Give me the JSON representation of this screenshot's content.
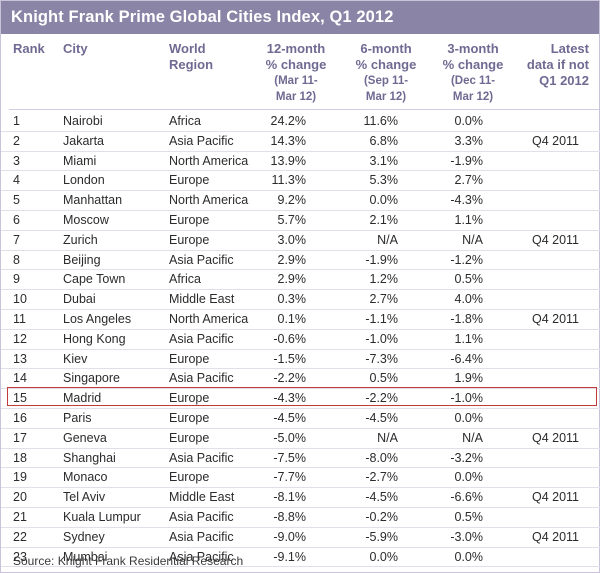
{
  "chart_data": {
    "type": "table",
    "title": "Knight Frank Prime Global Cities Index, Q1 2012",
    "columns": {
      "rank": "Rank",
      "city": "City",
      "region_l1": "World",
      "region_l2": "Region",
      "y12_l1": "12-month",
      "y12_l2": "% change",
      "y12_l3": "(Mar 11-",
      "y12_l4": "Mar 12)",
      "m6_l1": "6-month",
      "m6_l2": "% change",
      "m6_l3": "(Sep 11-",
      "m6_l4": "Mar 12)",
      "m3_l1": "3-month",
      "m3_l2": "% change",
      "m3_l3": "(Dec 11-",
      "m3_l4": "Mar 12)",
      "latest_l1": "Latest",
      "latest_l2": "data if not",
      "latest_l3": "Q1 2012"
    },
    "rows": [
      {
        "rank": "1",
        "city": "Nairobi",
        "region": "Africa",
        "y12": "24.2%",
        "m6": "11.6%",
        "m3": "0.0%",
        "latest": ""
      },
      {
        "rank": "2",
        "city": "Jakarta",
        "region": "Asia Pacific",
        "y12": "14.3%",
        "m6": "6.8%",
        "m3": "3.3%",
        "latest": "Q4 2011"
      },
      {
        "rank": "3",
        "city": "Miami",
        "region": "North America",
        "y12": "13.9%",
        "m6": "3.1%",
        "m3": "-1.9%",
        "latest": ""
      },
      {
        "rank": "4",
        "city": "London",
        "region": "Europe",
        "y12": "11.3%",
        "m6": "5.3%",
        "m3": "2.7%",
        "latest": ""
      },
      {
        "rank": "5",
        "city": "Manhattan",
        "region": "North America",
        "y12": "9.2%",
        "m6": "0.0%",
        "m3": "-4.3%",
        "latest": ""
      },
      {
        "rank": "6",
        "city": "Moscow",
        "region": "Europe",
        "y12": "5.7%",
        "m6": "2.1%",
        "m3": "1.1%",
        "latest": ""
      },
      {
        "rank": "7",
        "city": "Zurich",
        "region": "Europe",
        "y12": "3.0%",
        "m6": "N/A",
        "m3": "N/A",
        "latest": "Q4 2011"
      },
      {
        "rank": "8",
        "city": "Beijing",
        "region": "Asia Pacific",
        "y12": "2.9%",
        "m6": "-1.9%",
        "m3": "-1.2%",
        "latest": ""
      },
      {
        "rank": "9",
        "city": "Cape Town",
        "region": "Africa",
        "y12": "2.9%",
        "m6": "1.2%",
        "m3": "0.5%",
        "latest": ""
      },
      {
        "rank": "10",
        "city": "Dubai",
        "region": "Middle East",
        "y12": "0.3%",
        "m6": "2.7%",
        "m3": "4.0%",
        "latest": ""
      },
      {
        "rank": "11",
        "city": "Los Angeles",
        "region": "North America",
        "y12": "0.1%",
        "m6": "-1.1%",
        "m3": "-1.8%",
        "latest": "Q4 2011"
      },
      {
        "rank": "12",
        "city": "Hong Kong",
        "region": "Asia Pacific",
        "y12": "-0.6%",
        "m6": "-1.0%",
        "m3": "1.1%",
        "latest": ""
      },
      {
        "rank": "13",
        "city": "Kiev",
        "region": "Europe",
        "y12": "-1.5%",
        "m6": "-7.3%",
        "m3": "-6.4%",
        "latest": ""
      },
      {
        "rank": "14",
        "city": "Singapore",
        "region": "Asia Pacific",
        "y12": "-2.2%",
        "m6": "0.5%",
        "m3": "1.9%",
        "latest": ""
      },
      {
        "rank": "15",
        "city": "Madrid",
        "region": "Europe",
        "y12": "-4.3%",
        "m6": "-2.2%",
        "m3": "-1.0%",
        "latest": "",
        "highlight": true
      },
      {
        "rank": "16",
        "city": "Paris",
        "region": "Europe",
        "y12": "-4.5%",
        "m6": "-4.5%",
        "m3": "0.0%",
        "latest": ""
      },
      {
        "rank": "17",
        "city": "Geneva",
        "region": "Europe",
        "y12": "-5.0%",
        "m6": "N/A",
        "m3": "N/A",
        "latest": "Q4 2011"
      },
      {
        "rank": "18",
        "city": "Shanghai",
        "region": "Asia Pacific",
        "y12": "-7.5%",
        "m6": "-8.0%",
        "m3": "-3.2%",
        "latest": ""
      },
      {
        "rank": "19",
        "city": "Monaco",
        "region": "Europe",
        "y12": "-7.7%",
        "m6": "-2.7%",
        "m3": "0.0%",
        "latest": ""
      },
      {
        "rank": "20",
        "city": "Tel Aviv",
        "region": "Middle East",
        "y12": "-8.1%",
        "m6": "-4.5%",
        "m3": "-6.6%",
        "latest": "Q4 2011"
      },
      {
        "rank": "21",
        "city": "Kuala Lumpur",
        "region": "Asia Pacific",
        "y12": "-8.8%",
        "m6": "-0.2%",
        "m3": "0.5%",
        "latest": ""
      },
      {
        "rank": "22",
        "city": "Sydney",
        "region": "Asia Pacific",
        "y12": "-9.0%",
        "m6": "-5.9%",
        "m3": "-3.0%",
        "latest": "Q4 2011"
      },
      {
        "rank": "23",
        "city": "Mumbai",
        "region": "Asia Pacific",
        "y12": "-9.1%",
        "m6": "0.0%",
        "m3": "0.0%",
        "latest": ""
      }
    ],
    "source": "Source: Knight Frank Residential Research",
    "colors": {
      "title_bar": "#8a84a6",
      "header_text": "#6f6a92",
      "highlight_border": "#c23a3a"
    }
  }
}
